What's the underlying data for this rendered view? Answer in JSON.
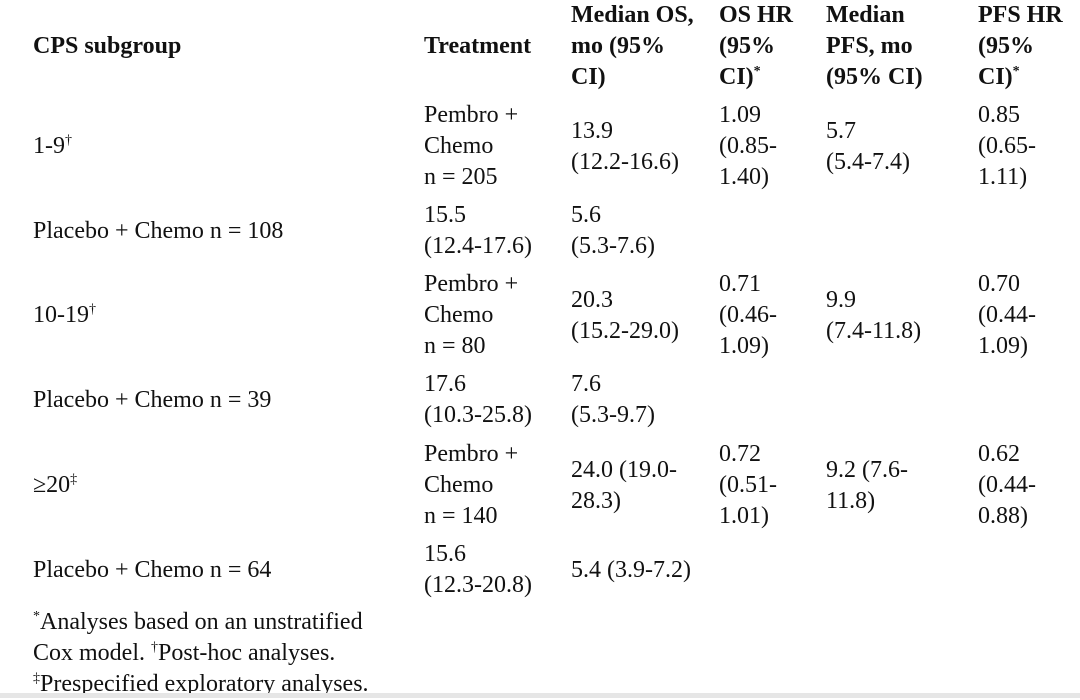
{
  "header": [
    {
      "text": "CPS subgroup",
      "sup": ""
    },
    {
      "text": "Treatment",
      "sup": ""
    },
    {
      "text": "Median OS,\nmo (95%\nCI)",
      "sup": ""
    },
    {
      "text": "OS HR\n(95%\nCI)",
      "sup": "*"
    },
    {
      "text": "Median\nPFS, mo\n(95% CI)",
      "sup": ""
    },
    {
      "text": "PFS HR\n(95%\nCI)",
      "sup": "*"
    }
  ],
  "rows": [
    {
      "cells": [
        {
          "text": "1-9",
          "sup": "†"
        },
        {
          "text": "Pembro +\nChemo\nn = 205"
        },
        {
          "text": "13.9\n(12.2-16.6)"
        },
        {
          "text": "1.09\n(0.85-\n1.40)"
        },
        {
          "text": "5.7\n(5.4-7.4)"
        },
        {
          "text": "0.85\n(0.65-\n1.11)"
        }
      ]
    },
    {
      "cells": [
        {
          "text": "Placebo + Chemo n = 108"
        },
        {
          "text": "15.5\n(12.4-17.6)"
        },
        {
          "text": "5.6\n(5.3-7.6)"
        },
        {
          "text": ""
        },
        {
          "text": ""
        },
        {
          "text": ""
        }
      ]
    },
    {
      "cells": [
        {
          "text": "10-19",
          "sup": "†"
        },
        {
          "text": "Pembro +\nChemo\nn = 80"
        },
        {
          "text": "20.3\n(15.2-29.0)"
        },
        {
          "text": "0.71\n(0.46-\n1.09)"
        },
        {
          "text": "9.9\n(7.4-11.8)"
        },
        {
          "text": "0.70\n(0.44-\n1.09)"
        }
      ]
    },
    {
      "cells": [
        {
          "text": "Placebo + Chemo n = 39"
        },
        {
          "text": "17.6\n(10.3-25.8)"
        },
        {
          "text": "7.6\n(5.3-9.7)"
        },
        {
          "text": ""
        },
        {
          "text": ""
        },
        {
          "text": ""
        }
      ]
    },
    {
      "cells": [
        {
          "text": "≥20",
          "sup": "‡"
        },
        {
          "text": "Pembro +\nChemo\nn = 140"
        },
        {
          "text": "24.0 (19.0-\n28.3)"
        },
        {
          "text": "0.72\n(0.51-\n1.01)"
        },
        {
          "text": "9.2 (7.6-\n11.8)"
        },
        {
          "text": "0.62\n(0.44-\n0.88)"
        }
      ]
    },
    {
      "cells": [
        {
          "text": "Placebo + Chemo n = 64"
        },
        {
          "text": "15.6\n(12.3-20.8)"
        },
        {
          "text": "5.4 (3.9-7.2)"
        },
        {
          "text": ""
        },
        {
          "text": ""
        },
        {
          "text": ""
        }
      ]
    }
  ],
  "footnotes": {
    "star_mark": "*",
    "line1": "Analyses based on an unstratified",
    "line2a": "Cox model. ",
    "dagger_mark": "†",
    "line2b": "Post-hoc analyses.",
    "ddagger_mark": "‡",
    "line3": "Prespecified exploratory analyses."
  }
}
